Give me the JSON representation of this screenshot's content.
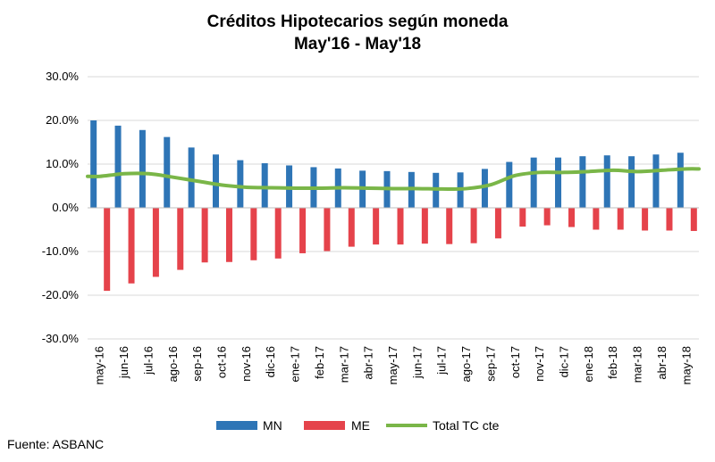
{
  "chart_data": {
    "type": "bar",
    "title": "Créditos Hipotecarios según moneda",
    "subtitle": "May'16 - May'18",
    "categories": [
      "may-16",
      "jun-16",
      "jul-16",
      "ago-16",
      "sep-16",
      "oct-16",
      "nov-16",
      "dic-16",
      "ene-17",
      "feb-17",
      "mar-17",
      "abr-17",
      "may-17",
      "jun-17",
      "jul-17",
      "ago-17",
      "sep-17",
      "oct-17",
      "nov-17",
      "dic-17",
      "ene-18",
      "feb-18",
      "mar-18",
      "abr-18",
      "may-18"
    ],
    "ylim": [
      -30,
      30
    ],
    "y_ticks": [
      "30.0%",
      "20.0%",
      "10.0%",
      "0.0%",
      "-10.0%",
      "-20.0%",
      "-30.0%"
    ],
    "y_tick_values": [
      30,
      20,
      10,
      0,
      -10,
      -20,
      -30
    ],
    "y_unit": "%",
    "grid": true,
    "legend_position": "bottom",
    "series": [
      {
        "name": "MN",
        "kind": "bar",
        "color": "#2E75B6",
        "values": [
          20.0,
          18.8,
          17.8,
          16.2,
          13.8,
          12.2,
          10.9,
          10.2,
          9.7,
          9.3,
          9.0,
          8.5,
          8.4,
          8.2,
          8.0,
          8.1,
          8.9,
          10.5,
          11.5,
          11.5,
          11.8,
          12.0,
          11.8,
          12.2,
          12.6
        ]
      },
      {
        "name": "ME",
        "kind": "bar",
        "color": "#E5434B",
        "values": [
          -19.0,
          -17.3,
          -15.8,
          -14.2,
          -12.5,
          -12.4,
          -12.0,
          -11.6,
          -10.4,
          -9.9,
          -8.9,
          -8.4,
          -8.4,
          -8.2,
          -8.3,
          -8.1,
          -7.0,
          -4.3,
          -4.0,
          -4.4,
          -5.0,
          -5.0,
          -5.2,
          -5.2,
          -5.3
        ]
      },
      {
        "name": "Total TC cte",
        "kind": "line",
        "color": "#7AB648",
        "values": [
          7.2,
          7.8,
          7.8,
          7.0,
          6.1,
          5.2,
          4.7,
          4.6,
          4.5,
          4.5,
          4.6,
          4.5,
          4.4,
          4.4,
          4.3,
          4.4,
          5.3,
          7.4,
          8.1,
          8.1,
          8.3,
          8.6,
          8.3,
          8.6,
          8.9
        ]
      }
    ]
  },
  "source": "Fuente: ASBANC"
}
